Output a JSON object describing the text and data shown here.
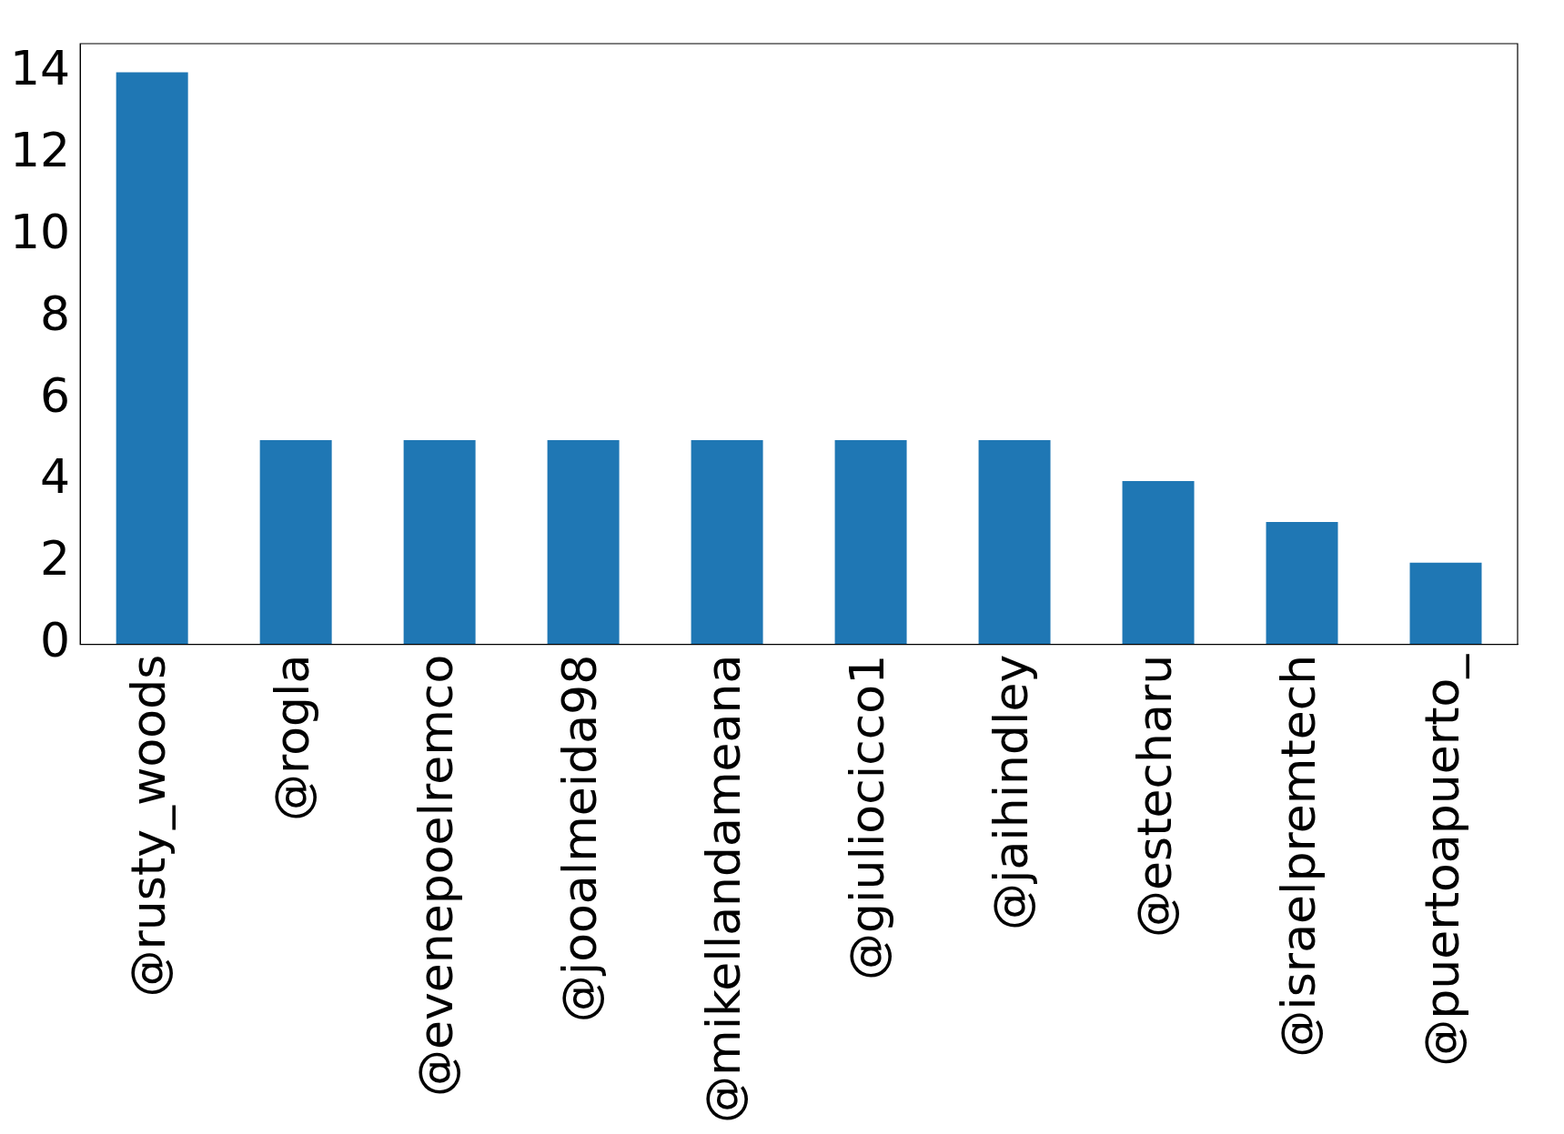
{
  "chart_data": {
    "type": "bar",
    "categories": [
      "@rusty_woods",
      "@rogla",
      "@evenepoelremco",
      "@jooalmeida98",
      "@mikellandameana",
      "@giuliocicco1",
      "@jaihindley",
      "@estecharu",
      "@israelpremtech",
      "@puertoapuerto_"
    ],
    "values": [
      14,
      5,
      5,
      5,
      5,
      5,
      5,
      4,
      3,
      2
    ],
    "color": "#1f77b4",
    "ylim": [
      0,
      14.7
    ],
    "yticks": [
      0,
      2,
      4,
      6,
      8,
      10,
      12,
      14
    ],
    "grid": false,
    "legend": false
  }
}
